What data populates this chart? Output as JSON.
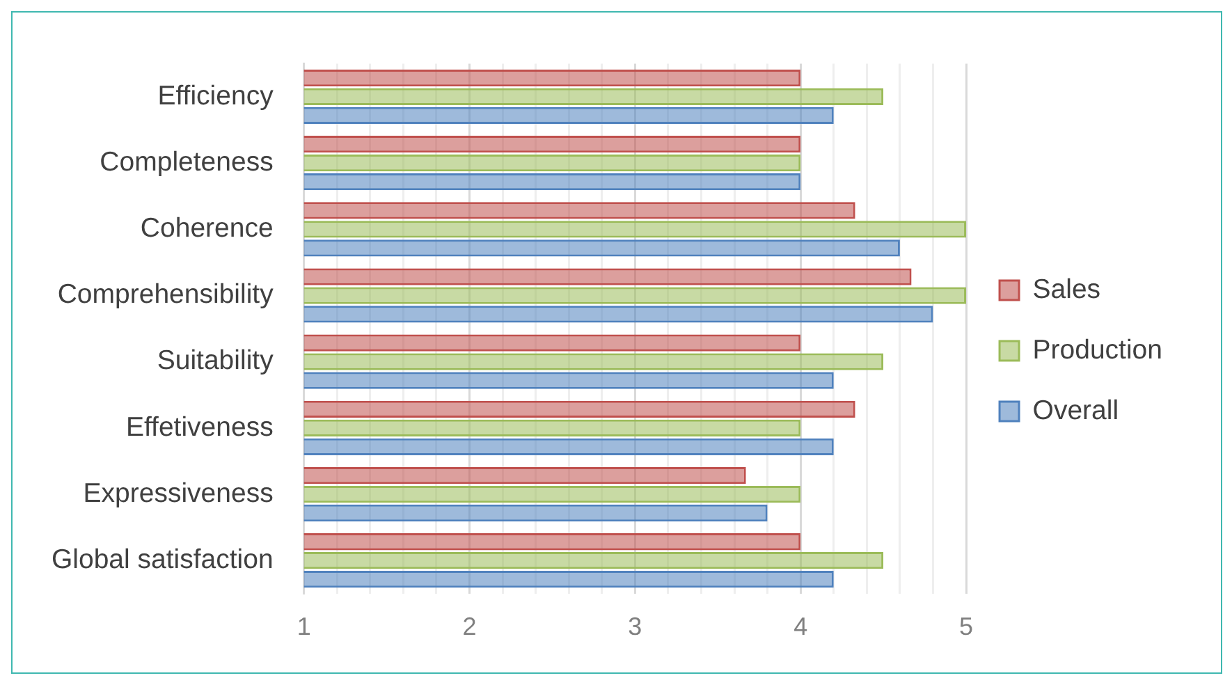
{
  "chart_data": {
    "type": "bar",
    "orientation": "horizontal",
    "categories": [
      "Efficiency",
      "Completeness",
      "Coherence",
      "Comprehensibility",
      "Suitability",
      "Effetiveness",
      "Expressiveness",
      "Global satisfaction"
    ],
    "series": [
      {
        "name": "Sales",
        "color": "#c0504d",
        "values": [
          4,
          4,
          4.33,
          4.67,
          4,
          4.33,
          3.67,
          4
        ]
      },
      {
        "name": "Production",
        "color": "#9bbb59",
        "values": [
          4.5,
          4,
          5,
          5,
          4.5,
          4,
          4,
          4.5
        ]
      },
      {
        "name": "Overall",
        "color": "#4f81bd",
        "values": [
          4.2,
          4,
          4.6,
          4.8,
          4.2,
          4.2,
          3.8,
          4.2
        ]
      }
    ],
    "xlim": [
      1,
      5
    ],
    "xticks": [
      1,
      {
        "value": 1.2,
        "label": null
      },
      {
        "value": 1.4,
        "label": null
      },
      {
        "value": 1.6,
        "label": null
      },
      {
        "value": 1.8,
        "label": null
      },
      2,
      {
        "value": 2.2,
        "label": null
      },
      {
        "value": 2.4,
        "label": null
      },
      {
        "value": 2.6,
        "label": null
      },
      {
        "value": 2.8,
        "label": null
      },
      3,
      {
        "value": 3.2,
        "label": null
      },
      {
        "value": 3.4,
        "label": null
      },
      {
        "value": 3.6,
        "label": null
      },
      {
        "value": 3.8,
        "label": null
      },
      4,
      {
        "value": 4.2,
        "label": null
      },
      {
        "value": 4.4,
        "label": null
      },
      {
        "value": 4.6,
        "label": null
      },
      {
        "value": 4.8,
        "label": null
      },
      5
    ],
    "grid": "x",
    "legend": "right"
  }
}
